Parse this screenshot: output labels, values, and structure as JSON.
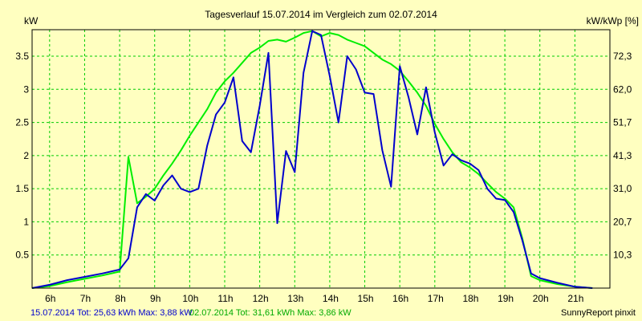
{
  "chart_data": {
    "type": "line",
    "title": "Tagesverlauf 15.07.2014 im Vergleich zum 02.07.2014",
    "ylabel_left": "kW",
    "ylabel_right": "kW/kWp [%]",
    "x_ticks": [
      "6h",
      "7h",
      "8h",
      "9h",
      "10h",
      "11h",
      "12h",
      "13h",
      "14h",
      "15h",
      "16h",
      "17h",
      "18h",
      "19h",
      "20h",
      "21h"
    ],
    "x_tick_values": [
      6,
      7,
      8,
      9,
      10,
      11,
      12,
      13,
      14,
      15,
      16,
      17,
      18,
      19,
      20,
      21
    ],
    "xlim": [
      5.5,
      22.0
    ],
    "ylim": [
      0,
      3.9
    ],
    "y_ticks": [
      "0.5",
      "1",
      "1.5",
      "2",
      "2.5",
      "3",
      "3.5"
    ],
    "y_tick_values": [
      0.5,
      1,
      1.5,
      2,
      2.5,
      3,
      3.5
    ],
    "y2_ticks": [
      "10,3",
      "20,7",
      "31,0",
      "41,3",
      "51,7",
      "62,0",
      "72,3"
    ],
    "grid": true,
    "colors": {
      "background": "#ffffc0",
      "grid": "#00cc00",
      "blue": "#0000cc",
      "green": "#00ee00"
    },
    "series": [
      {
        "name": "15.07.2014",
        "color": "#0000cc",
        "x": [
          5.5,
          6,
          6.5,
          7,
          7.5,
          8,
          8.25,
          8.5,
          8.75,
          9,
          9.25,
          9.5,
          9.75,
          10,
          10.25,
          10.5,
          10.75,
          11,
          11.25,
          11.5,
          11.75,
          12,
          12.25,
          12.5,
          12.75,
          13,
          13.25,
          13.5,
          13.75,
          14,
          14.25,
          14.5,
          14.75,
          15,
          15.25,
          15.5,
          15.75,
          16,
          16.25,
          16.5,
          16.75,
          17,
          17.25,
          17.5,
          17.75,
          18,
          18.25,
          18.5,
          18.75,
          19,
          19.25,
          19.5,
          19.75,
          20,
          20.5,
          21,
          21.5
        ],
        "values": [
          0,
          0.05,
          0.12,
          0.17,
          0.22,
          0.28,
          0.45,
          1.22,
          1.42,
          1.32,
          1.55,
          1.7,
          1.5,
          1.45,
          1.5,
          2.15,
          2.62,
          2.8,
          3.18,
          2.22,
          2.05,
          2.75,
          3.55,
          0.98,
          2.07,
          1.75,
          3.25,
          3.88,
          3.82,
          3.2,
          2.5,
          3.5,
          3.3,
          2.95,
          2.93,
          2.08,
          1.53,
          3.35,
          2.88,
          2.32,
          3.03,
          2.35,
          1.85,
          2.02,
          1.93,
          1.88,
          1.78,
          1.5,
          1.35,
          1.33,
          1.15,
          0.72,
          0.22,
          0.15,
          0.08,
          0.02,
          0.0
        ]
      },
      {
        "name": "02.07.2014",
        "color": "#00ee00",
        "x": [
          5.5,
          6,
          6.5,
          7,
          7.5,
          8,
          8.25,
          8.5,
          8.75,
          9,
          9.25,
          9.5,
          9.75,
          10,
          10.25,
          10.5,
          10.75,
          11,
          11.25,
          11.5,
          11.75,
          12,
          12.25,
          12.5,
          12.75,
          13,
          13.25,
          13.5,
          13.75,
          14,
          14.25,
          14.5,
          14.75,
          15,
          15.25,
          15.5,
          15.75,
          16,
          16.25,
          16.5,
          16.75,
          17,
          17.25,
          17.5,
          17.75,
          18,
          18.25,
          18.5,
          18.75,
          19,
          19.25,
          19.5,
          19.75,
          20,
          20.5,
          21,
          21.5
        ],
        "values": [
          0,
          0.03,
          0.09,
          0.14,
          0.19,
          0.25,
          1.98,
          1.28,
          1.38,
          1.5,
          1.7,
          1.88,
          2.08,
          2.3,
          2.5,
          2.7,
          2.95,
          3.12,
          3.25,
          3.4,
          3.55,
          3.63,
          3.73,
          3.75,
          3.72,
          3.78,
          3.85,
          3.88,
          3.8,
          3.85,
          3.82,
          3.75,
          3.7,
          3.65,
          3.55,
          3.45,
          3.38,
          3.28,
          3.12,
          2.95,
          2.75,
          2.48,
          2.25,
          2.05,
          1.9,
          1.82,
          1.72,
          1.58,
          1.45,
          1.35,
          1.22,
          0.75,
          0.18,
          0.12,
          0.06,
          0.02,
          0.0
        ]
      }
    ]
  },
  "footer": {
    "blue": "15.07.2014 Tot: 25,63 kWh Max: 3,88 kW",
    "green": "02.07.2014 Tot: 31,61 kWh Max: 3,86 kW",
    "right": "SunnyReport pinxit"
  }
}
